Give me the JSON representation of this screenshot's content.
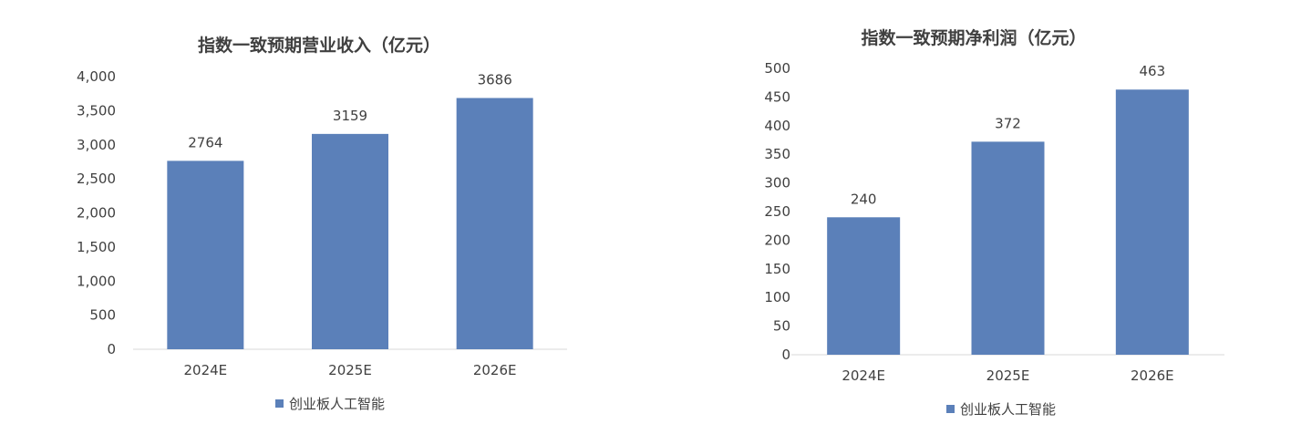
{
  "colors": {
    "bar": "#5B80B9",
    "axis": "#D9D9D9",
    "text": "#404040"
  },
  "chart_data": [
    {
      "type": "bar",
      "title": "指数一致预期营业收入（亿元）",
      "categories": [
        "2024E",
        "2025E",
        "2026E"
      ],
      "series": [
        {
          "name": "创业板人工智能",
          "values": [
            2764,
            3159,
            3686
          ]
        }
      ],
      "data_labels": [
        "2764",
        "3159",
        "3686"
      ],
      "ylim": [
        0,
        4000
      ],
      "yticks": [
        0,
        500,
        1000,
        1500,
        2000,
        2500,
        3000,
        3500,
        4000
      ],
      "ytick_labels": [
        "0",
        "500",
        "1,000",
        "1,500",
        "2,000",
        "2,500",
        "3,000",
        "3,500",
        "4,000"
      ],
      "grid": false,
      "legend": "bottom"
    },
    {
      "type": "bar",
      "title": "指数一致预期净利润（亿元）",
      "categories": [
        "2024E",
        "2025E",
        "2026E"
      ],
      "series": [
        {
          "name": "创业板人工智能",
          "values": [
            240,
            372,
            463
          ]
        }
      ],
      "data_labels": [
        "240",
        "372",
        "463"
      ],
      "ylim": [
        0,
        500
      ],
      "yticks": [
        0,
        50,
        100,
        150,
        200,
        250,
        300,
        350,
        400,
        450,
        500
      ],
      "ytick_labels": [
        "0",
        "50",
        "100",
        "150",
        "200",
        "250",
        "300",
        "350",
        "400",
        "450",
        "500"
      ],
      "grid": false,
      "legend": "bottom"
    }
  ]
}
